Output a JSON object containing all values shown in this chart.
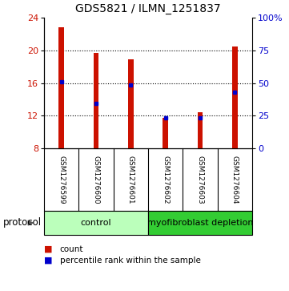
{
  "title": "GDS5821 / ILMN_1251837",
  "samples": [
    "GSM1276599",
    "GSM1276600",
    "GSM1276601",
    "GSM1276602",
    "GSM1276603",
    "GSM1276604"
  ],
  "bar_bottom": 8.0,
  "bar_tops": [
    22.8,
    19.7,
    18.9,
    11.7,
    12.4,
    20.5
  ],
  "percentile_values": [
    16.1,
    13.5,
    15.8,
    11.7,
    11.7,
    14.9
  ],
  "ylim": [
    8,
    24
  ],
  "yticks_left": [
    8,
    12,
    16,
    20,
    24
  ],
  "yticks_right": [
    0,
    25,
    50,
    75,
    100
  ],
  "ytick_right_labels": [
    "0",
    "25",
    "50",
    "75",
    "100%"
  ],
  "bar_color": "#cc1100",
  "blue_color": "#0000cc",
  "groups": [
    {
      "label": "control",
      "indices": [
        0,
        1,
        2
      ],
      "color": "#bbffbb"
    },
    {
      "label": "myofibroblast depletion",
      "indices": [
        3,
        4,
        5
      ],
      "color": "#33cc33"
    }
  ],
  "protocol_label": "protocol",
  "legend_count_label": "count",
  "legend_pct_label": "percentile rank within the sample",
  "bar_width": 0.15,
  "grid_color": "#000000",
  "background_color": "#ffffff",
  "sample_box_color": "#cccccc",
  "title_fontsize": 10,
  "tick_fontsize": 8,
  "sample_fontsize": 6.5,
  "group_fontsize": 8,
  "legend_fontsize": 7.5
}
